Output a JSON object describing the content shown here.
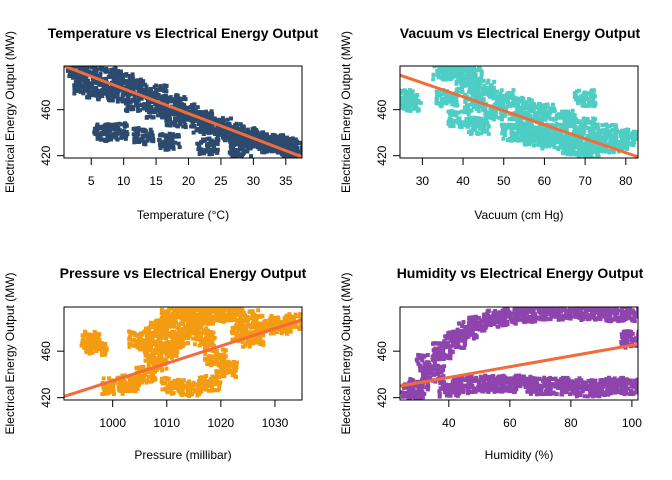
{
  "colors": {
    "background": "#ffffff",
    "regression_line": "#f26c3a",
    "axis": "#000000"
  },
  "chart_data": [
    {
      "type": "scatter",
      "title": "Temperature vs Electrical Energy Output",
      "xlabel": "Temperature (°C)",
      "ylabel": "Electrical Energy Output (MW)",
      "xlim": [
        0.8,
        37.5
      ],
      "ylim": [
        418,
        498
      ],
      "xticks": [
        5,
        10,
        15,
        20,
        25,
        30,
        35
      ],
      "yticks": [
        420,
        460
      ],
      "point_color": "#2c4a6e",
      "grid": false,
      "cloud": [
        [
          3,
          493
        ],
        [
          5,
          492
        ],
        [
          8,
          489
        ],
        [
          10,
          484
        ],
        [
          12,
          480
        ],
        [
          15,
          474
        ],
        [
          18,
          466
        ],
        [
          20,
          458
        ],
        [
          22,
          452
        ],
        [
          25,
          446
        ],
        [
          27,
          441
        ],
        [
          29,
          437
        ],
        [
          31,
          433
        ],
        [
          33,
          430
        ],
        [
          35,
          428
        ],
        [
          36,
          426
        ],
        [
          4,
          480
        ],
        [
          6,
          476
        ],
        [
          9,
          474
        ],
        [
          12,
          466
        ],
        [
          15,
          460
        ],
        [
          18,
          452
        ],
        [
          22,
          446
        ],
        [
          26,
          439
        ],
        [
          30,
          434
        ],
        [
          34,
          431
        ],
        [
          7,
          440
        ],
        [
          9,
          441
        ],
        [
          13,
          437
        ],
        [
          17,
          432
        ],
        [
          23,
          428
        ],
        [
          28,
          426
        ]
      ],
      "regression_line": [
        [
          0.8,
          498
        ],
        [
          37.5,
          419
        ]
      ]
    },
    {
      "type": "scatter",
      "title": "Vacuum vs Electrical Energy Output",
      "xlabel": "Vacuum (cm Hg)",
      "ylabel": "Electrical Energy Output (MW)",
      "xlim": [
        24.5,
        83
      ],
      "ylim": [
        418,
        498
      ],
      "xticks": [
        30,
        40,
        50,
        60,
        70,
        80
      ],
      "yticks": [
        420,
        460
      ],
      "point_color": "#4ecdc4",
      "grid": false,
      "cloud": [
        [
          35,
          493
        ],
        [
          38,
          495
        ],
        [
          40,
          494
        ],
        [
          42,
          490
        ],
        [
          41,
          482
        ],
        [
          45,
          478
        ],
        [
          50,
          470
        ],
        [
          55,
          464
        ],
        [
          60,
          458
        ],
        [
          65,
          452
        ],
        [
          70,
          446
        ],
        [
          75,
          440
        ],
        [
          80,
          436
        ],
        [
          43,
          466
        ],
        [
          48,
          458
        ],
        [
          54,
          450
        ],
        [
          58,
          444
        ],
        [
          63,
          440
        ],
        [
          68,
          434
        ],
        [
          73,
          430
        ],
        [
          78,
          430
        ],
        [
          36,
          470
        ],
        [
          39,
          452
        ],
        [
          44,
          446
        ],
        [
          52,
          440
        ],
        [
          57,
          436
        ],
        [
          62,
          432
        ],
        [
          67,
          428
        ],
        [
          71,
          424
        ],
        [
          26,
          470
        ],
        [
          27,
          466
        ],
        [
          70,
          470
        ]
      ],
      "regression_line": [
        [
          24.5,
          490
        ],
        [
          83,
          419
        ]
      ]
    },
    {
      "type": "scatter",
      "title": "Pressure vs Electrical Energy Output",
      "xlabel": "Pressure (millibar)",
      "ylabel": "Electrical Energy Output (MW)",
      "xlim": [
        991,
        1035
      ],
      "ylim": [
        418,
        498
      ],
      "xticks": [
        1000,
        1010,
        1020,
        1030
      ],
      "yticks": [
        420,
        460
      ],
      "point_color": "#f39c12",
      "grid": false,
      "cloud": [
        [
          1000,
          430
        ],
        [
          1003,
          432
        ],
        [
          1006,
          440
        ],
        [
          1008,
          450
        ],
        [
          1010,
          460
        ],
        [
          1012,
          470
        ],
        [
          1014,
          478
        ],
        [
          1016,
          484
        ],
        [
          1018,
          490
        ],
        [
          1020,
          493
        ],
        [
          1022,
          492
        ],
        [
          1025,
          488
        ],
        [
          1028,
          484
        ],
        [
          1031,
          482
        ],
        [
          1033,
          485
        ],
        [
          1005,
          470
        ],
        [
          1008,
          478
        ],
        [
          1011,
          490
        ],
        [
          1013,
          494
        ],
        [
          1015,
          492
        ],
        [
          1017,
          470
        ],
        [
          1019,
          455
        ],
        [
          1021,
          445
        ],
        [
          1018,
          432
        ],
        [
          1014,
          428
        ],
        [
          1011,
          430
        ],
        [
          997,
          464
        ],
        [
          996,
          470
        ],
        [
          1024,
          476
        ],
        [
          1026,
          470
        ],
        [
          1007,
          466
        ],
        [
          1010,
          480
        ]
      ],
      "regression_line": [
        [
          991,
          421
        ],
        [
          1035,
          487
        ]
      ]
    },
    {
      "type": "scatter",
      "title": "Humidity vs Electrical Energy Output",
      "xlabel": "Humidity (%)",
      "ylabel": "Electrical Energy Output (MW)",
      "xlim": [
        24,
        102
      ],
      "ylim": [
        418,
        498
      ],
      "xticks": [
        40,
        60,
        80,
        100
      ],
      "yticks": [
        420,
        460
      ],
      "point_color": "#8e44ad",
      "grid": false,
      "cloud": [
        [
          30,
          430
        ],
        [
          35,
          440
        ],
        [
          38,
          460
        ],
        [
          42,
          470
        ],
        [
          46,
          478
        ],
        [
          50,
          484
        ],
        [
          55,
          488
        ],
        [
          60,
          490
        ],
        [
          65,
          492
        ],
        [
          70,
          494
        ],
        [
          75,
          494
        ],
        [
          80,
          495
        ],
        [
          85,
          494
        ],
        [
          90,
          494
        ],
        [
          95,
          493
        ],
        [
          100,
          493
        ],
        [
          40,
          428
        ],
        [
          45,
          430
        ],
        [
          50,
          432
        ],
        [
          55,
          432
        ],
        [
          60,
          432
        ],
        [
          65,
          432
        ],
        [
          70,
          430
        ],
        [
          75,
          430
        ],
        [
          80,
          430
        ],
        [
          85,
          428
        ],
        [
          90,
          428
        ],
        [
          95,
          430
        ],
        [
          100,
          430
        ],
        [
          28,
          426
        ],
        [
          33,
          450
        ],
        [
          100,
          470
        ]
      ],
      "regression_line": [
        [
          24,
          430
        ],
        [
          102,
          466
        ]
      ]
    }
  ]
}
